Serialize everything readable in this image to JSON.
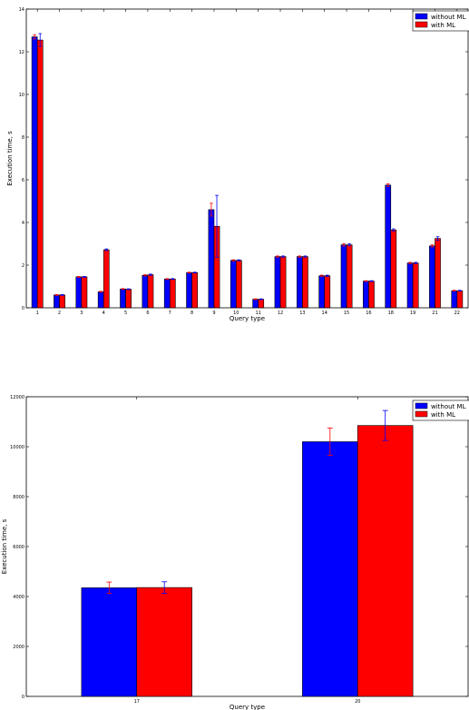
{
  "chart_data": [
    {
      "type": "bar",
      "xlabel": "Query type",
      "ylabel": "Execution time, s",
      "ylim": [
        0,
        14
      ],
      "yticks": [
        "0",
        "2",
        "4",
        "6",
        "8",
        "10",
        "12",
        "14"
      ],
      "categories": [
        "1",
        "2",
        "3",
        "4",
        "5",
        "6",
        "7",
        "8",
        "9",
        "10",
        "11",
        "12",
        "13",
        "14",
        "15",
        "16",
        "18",
        "19",
        "21",
        "22"
      ],
      "legend_position": "top-right",
      "series": [
        {
          "name": "without ML",
          "color": "#0000ff",
          "values": [
            12.7,
            0.6,
            1.45,
            0.75,
            0.88,
            1.52,
            1.35,
            1.65,
            4.6,
            2.22,
            0.4,
            2.4,
            2.4,
            1.5,
            2.95,
            1.25,
            5.75,
            2.1,
            2.9,
            0.8
          ],
          "errors": [
            0.1,
            0.02,
            0.02,
            0.02,
            0.02,
            0.03,
            0.02,
            0.02,
            0.3,
            0.03,
            0.02,
            0.03,
            0.03,
            0.03,
            0.06,
            0.02,
            0.06,
            0.03,
            0.05,
            0.02
          ]
        },
        {
          "name": "with ML",
          "color": "#ff0000",
          "values": [
            12.55,
            0.6,
            1.45,
            2.72,
            0.87,
            1.55,
            1.35,
            1.65,
            3.82,
            2.22,
            0.4,
            2.4,
            2.4,
            1.5,
            2.95,
            1.25,
            3.65,
            2.1,
            3.25,
            0.8
          ],
          "errors": [
            0.3,
            0.02,
            0.02,
            0.04,
            0.02,
            0.03,
            0.02,
            0.02,
            1.45,
            0.03,
            0.02,
            0.03,
            0.03,
            0.03,
            0.05,
            0.02,
            0.05,
            0.03,
            0.08,
            0.02
          ]
        }
      ]
    },
    {
      "type": "bar",
      "xlabel": "Query type",
      "ylabel": "Execution time, s",
      "ylim": [
        0,
        12000
      ],
      "yticks": [
        "0",
        "2000",
        "4000",
        "6000",
        "8000",
        "10000",
        "12000"
      ],
      "categories": [
        "17",
        "20"
      ],
      "legend_position": "top-right",
      "series": [
        {
          "name": "without ML",
          "color": "#0000ff",
          "values": [
            4350,
            10200
          ],
          "errors": [
            230,
            550
          ]
        },
        {
          "name": "with ML",
          "color": "#ff0000",
          "values": [
            4360,
            10850
          ],
          "errors": [
            230,
            600
          ]
        }
      ]
    }
  ]
}
